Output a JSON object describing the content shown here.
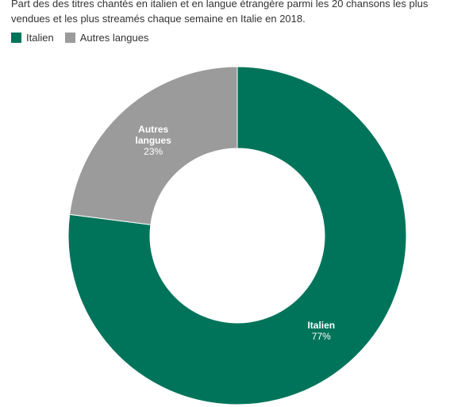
{
  "chart_data": {
    "type": "donut",
    "subtitle": "Part des des titres chantés en italien et en langue étrangère parmi les 20 chansons les plus vendues et les plus streamés chaque semaine en Italie en 2018.",
    "categories": [
      "Italien",
      "Autres langues"
    ],
    "values": [
      77,
      23
    ],
    "value_labels": [
      "77%",
      "23%"
    ],
    "colors": [
      "#00745a",
      "#9b9b9b"
    ]
  }
}
